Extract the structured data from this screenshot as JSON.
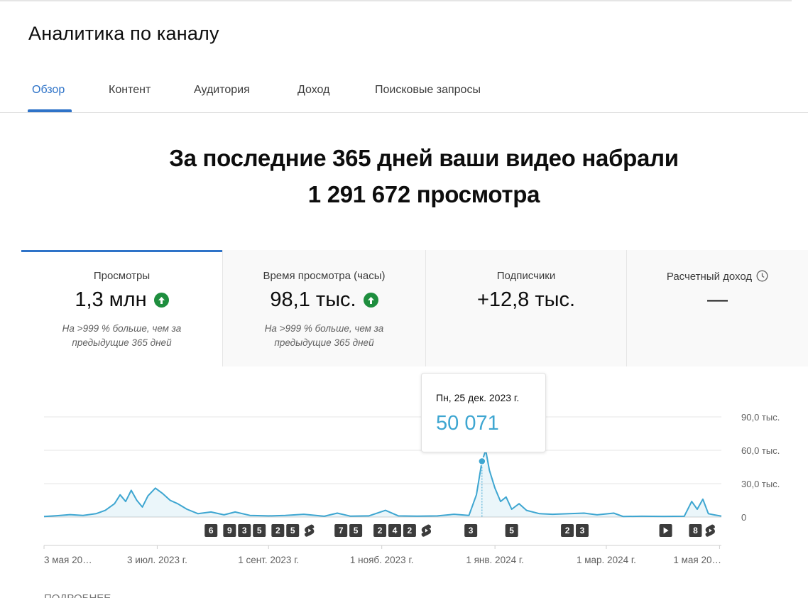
{
  "page": {
    "title": "Аналитика по каналу"
  },
  "tabs": [
    {
      "label": "Обзор",
      "active": true
    },
    {
      "label": "Контент"
    },
    {
      "label": "Аудитория"
    },
    {
      "label": "Доход"
    },
    {
      "label": "Поисковые запросы"
    }
  ],
  "headline": {
    "line1": "За последние 365 дней ваши видео набрали",
    "line2": "1 291 672 просмотра"
  },
  "metrics": [
    {
      "label": "Просмотры",
      "value": "1,3 млн",
      "trend": "up",
      "note1": "На >999 % больше, чем за",
      "note2": "предыдущие 365 дней",
      "active": true
    },
    {
      "label": "Время просмотра (часы)",
      "value": "98,1 тыс.",
      "trend": "up",
      "note1": "На >999 % больше, чем за",
      "note2": "предыдущие 365 дней"
    },
    {
      "label": "Подписчики",
      "value": "+12,8 тыс."
    },
    {
      "label": "Расчетный доход",
      "value": "—",
      "icon": "clock-icon"
    }
  ],
  "tooltip": {
    "date": "Пн, 25 дек. 2023 г.",
    "value": "50 071"
  },
  "colors": {
    "accent": "#2e73c8",
    "line": "#3ea6d1",
    "up": "#1e8e3e"
  },
  "chart_data": {
    "type": "area",
    "ylim": [
      0,
      90000
    ],
    "y_ticks": [
      "90,0 тыс.",
      "60,0 тыс.",
      "30,0 тыс.",
      "0"
    ],
    "y_tick_values": [
      90000,
      60000,
      30000,
      0
    ],
    "x_tick_labels": [
      "3 мая 20…",
      "3 июл. 2023 г.",
      "1 сент. 2023 г.",
      "1 нояб. 2023 г.",
      "1 янв. 2024 г.",
      "1 мар. 2024 г.",
      "1 мая 20…"
    ],
    "x_tick_dates": [
      "2023-05-03",
      "2023-07-03",
      "2023-09-01",
      "2023-11-01",
      "2024-01-01",
      "2024-03-01",
      "2024-05-01"
    ],
    "x_range": [
      "2023-05-03",
      "2024-05-02"
    ],
    "highlight": {
      "date": "2023-12-25",
      "value": 50071
    },
    "series": [
      {
        "points": [
          [
            "2023-05-03",
            500
          ],
          [
            "2023-05-10",
            1200
          ],
          [
            "2023-05-17",
            2200
          ],
          [
            "2023-05-24",
            1500
          ],
          [
            "2023-05-31",
            3000
          ],
          [
            "2023-06-05",
            6000
          ],
          [
            "2023-06-10",
            12000
          ],
          [
            "2023-06-13",
            20000
          ],
          [
            "2023-06-16",
            14000
          ],
          [
            "2023-06-19",
            24000
          ],
          [
            "2023-06-22",
            15000
          ],
          [
            "2023-06-25",
            9000
          ],
          [
            "2023-06-28",
            19000
          ],
          [
            "2023-07-02",
            26000
          ],
          [
            "2023-07-06",
            21000
          ],
          [
            "2023-07-10",
            15000
          ],
          [
            "2023-07-14",
            12000
          ],
          [
            "2023-07-19",
            7000
          ],
          [
            "2023-07-25",
            3000
          ],
          [
            "2023-08-01",
            4500
          ],
          [
            "2023-08-08",
            2000
          ],
          [
            "2023-08-14",
            4500
          ],
          [
            "2023-08-22",
            1500
          ],
          [
            "2023-09-01",
            1000
          ],
          [
            "2023-09-10",
            1500
          ],
          [
            "2023-09-20",
            2500
          ],
          [
            "2023-10-01",
            700
          ],
          [
            "2023-10-08",
            3500
          ],
          [
            "2023-10-15",
            800
          ],
          [
            "2023-10-25",
            1000
          ],
          [
            "2023-11-03",
            6000
          ],
          [
            "2023-11-10",
            1000
          ],
          [
            "2023-11-20",
            800
          ],
          [
            "2023-12-01",
            1000
          ],
          [
            "2023-12-10",
            2500
          ],
          [
            "2023-12-18",
            1500
          ],
          [
            "2023-12-22",
            20000
          ],
          [
            "2023-12-25",
            50071
          ],
          [
            "2023-12-27",
            60000
          ],
          [
            "2023-12-29",
            42000
          ],
          [
            "2024-01-01",
            26000
          ],
          [
            "2024-01-04",
            14000
          ],
          [
            "2024-01-07",
            18000
          ],
          [
            "2024-01-10",
            7000
          ],
          [
            "2024-01-14",
            12000
          ],
          [
            "2024-01-18",
            6000
          ],
          [
            "2024-01-25",
            3000
          ],
          [
            "2024-02-01",
            2500
          ],
          [
            "2024-02-10",
            3000
          ],
          [
            "2024-02-18",
            3500
          ],
          [
            "2024-02-25",
            2000
          ],
          [
            "2024-03-05",
            3500
          ],
          [
            "2024-03-10",
            500
          ],
          [
            "2024-03-20",
            700
          ],
          [
            "2024-04-01",
            600
          ],
          [
            "2024-04-12",
            700
          ],
          [
            "2024-04-16",
            14000
          ],
          [
            "2024-04-19",
            7000
          ],
          [
            "2024-04-22",
            16000
          ],
          [
            "2024-04-25",
            3000
          ],
          [
            "2024-04-28",
            2000
          ],
          [
            "2024-05-02",
            800
          ]
        ]
      }
    ],
    "markers": [
      {
        "label": "6",
        "date": "2023-08-01"
      },
      {
        "label": "9",
        "date": "2023-08-11"
      },
      {
        "label": "3",
        "date": "2023-08-19"
      },
      {
        "label": "5",
        "date": "2023-08-27"
      },
      {
        "label": "2",
        "date": "2023-09-06"
      },
      {
        "label": "5",
        "date": "2023-09-14"
      },
      {
        "label": "",
        "date": "2023-09-23",
        "icon": "shorts-icon"
      },
      {
        "label": "7",
        "date": "2023-10-10"
      },
      {
        "label": "5",
        "date": "2023-10-18"
      },
      {
        "label": "2",
        "date": "2023-10-31"
      },
      {
        "label": "4",
        "date": "2023-11-08"
      },
      {
        "label": "2",
        "date": "2023-11-16"
      },
      {
        "label": "",
        "date": "2023-11-25",
        "icon": "shorts-icon"
      },
      {
        "label": "3",
        "date": "2023-12-19"
      },
      {
        "label": "5",
        "date": "2024-01-10"
      },
      {
        "label": "2",
        "date": "2024-02-09"
      },
      {
        "label": "3",
        "date": "2024-02-17"
      },
      {
        "label": "",
        "date": "2024-04-02",
        "icon": "play-icon"
      },
      {
        "label": "8",
        "date": "2024-04-18"
      },
      {
        "label": "",
        "date": "2024-04-26",
        "icon": "shorts-icon"
      }
    ]
  },
  "footer": {
    "label": "ПОДРОБНЕЕ"
  }
}
